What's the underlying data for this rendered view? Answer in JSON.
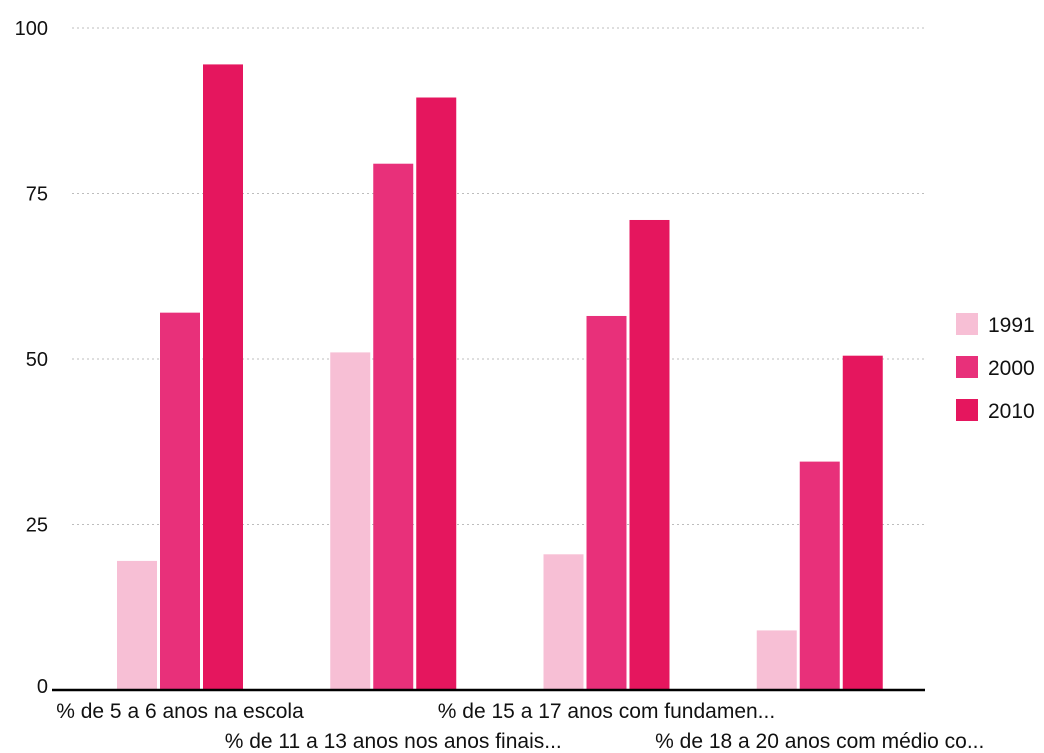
{
  "chart_data": {
    "type": "bar",
    "categories": [
      "% de 5 a 6 anos na escola",
      "% de 11 a 13 anos nos anos finais...",
      "% de 15 a 17 anos com fundamen...",
      "% de 18 a 20 anos com médio co..."
    ],
    "series": [
      {
        "name": "1991",
        "values": [
          19.5,
          51.0,
          20.5,
          9.0
        ],
        "color": "#f7bfd5"
      },
      {
        "name": "2000",
        "values": [
          57.0,
          79.5,
          56.5,
          34.5
        ],
        "color": "#e8307a"
      },
      {
        "name": "2010",
        "values": [
          94.5,
          89.5,
          71.0,
          50.5
        ],
        "color": "#e5165e"
      }
    ],
    "yticks": [
      0,
      25,
      50,
      75,
      100
    ],
    "ylim": [
      0,
      100
    ],
    "grid": true,
    "legend_position": "right"
  }
}
